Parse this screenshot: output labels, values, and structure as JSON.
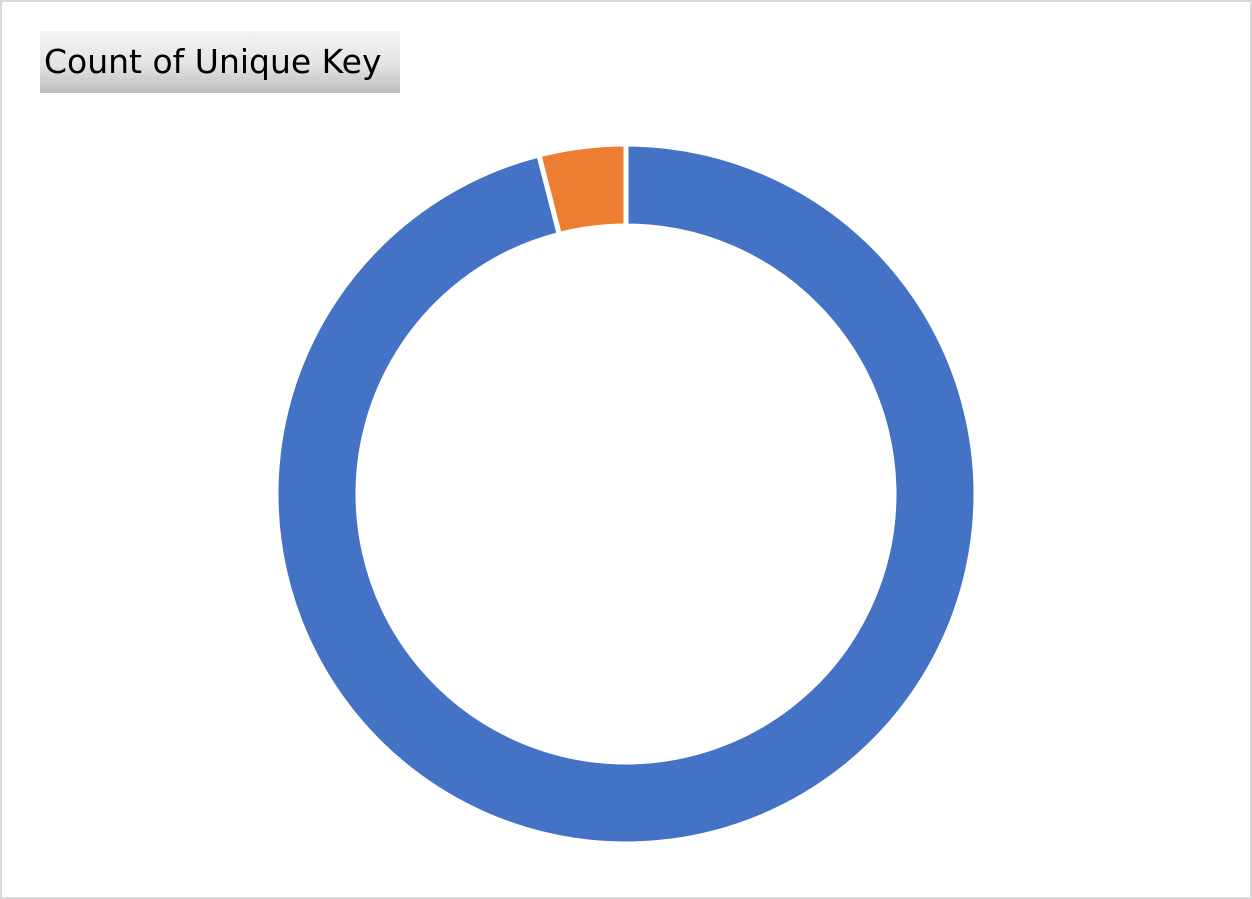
{
  "field_button": {
    "label": "Count of Unique Key"
  },
  "chart_data": {
    "type": "pie",
    "variant": "donut",
    "title": "",
    "legend": "none",
    "series": [
      {
        "values": [
          96,
          4
        ],
        "colors": [
          "#4472C4",
          "#ED7D31"
        ]
      }
    ],
    "start_angle_deg": 0
  }
}
